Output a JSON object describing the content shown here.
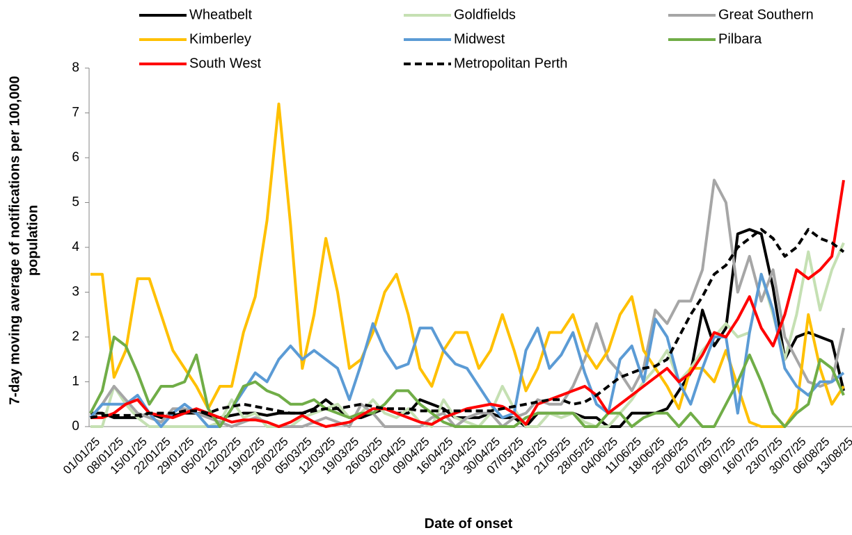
{
  "chart_data": {
    "type": "line",
    "xlabel": "Date of onset",
    "ylabel": [
      "7-day moving average of notifications  per 100,000",
      "population"
    ],
    "categories": [
      "01/01/25",
      null,
      "08/01/25",
      null,
      "15/01/25",
      null,
      "22/01/25",
      null,
      "29/01/25",
      null,
      "05/02/25",
      null,
      "12/02/25",
      null,
      "19/02/25",
      null,
      "26/02/25",
      null,
      "05/03/25",
      null,
      "12/03/25",
      null,
      "19/03/25",
      null,
      "26/03/25",
      null,
      "02/04/25",
      null,
      "09/04/25",
      null,
      "16/04/25",
      null,
      "23/04/25",
      null,
      "30/04/25",
      null,
      "07/05/25",
      null,
      "14/05/25",
      null,
      "21/05/25",
      null,
      "28/05/25",
      null,
      "04/06/25",
      null,
      "11/06/25",
      null,
      "18/06/25",
      null,
      "25/06/25",
      null,
      "02/07/25",
      null,
      "09/07/25",
      null,
      "16/07/25",
      null,
      "23/07/25",
      null,
      "30/07/25",
      null,
      "06/08/25",
      null,
      "13/08/25"
    ],
    "ylim": [
      0,
      8
    ],
    "yticks": [
      0,
      1,
      2,
      3,
      4,
      5,
      6,
      7,
      8
    ],
    "grid": false,
    "legend": "top",
    "series": [
      {
        "name": "Wheatbelt",
        "color": "#000000",
        "style": "solid",
        "values": [
          0.3,
          0.3,
          0.2,
          0.2,
          0.2,
          0.3,
          0.2,
          0.25,
          0.3,
          0.3,
          0.25,
          0.2,
          0.25,
          0.3,
          0.3,
          0.25,
          0.3,
          0.3,
          0.3,
          0.4,
          0.6,
          0.4,
          0.2,
          0.2,
          0.3,
          0.4,
          0.3,
          0.3,
          0.6,
          0.5,
          0.4,
          0.2,
          0.2,
          0.2,
          0.3,
          0.2,
          0.2,
          0.0,
          0.3,
          0.3,
          0.3,
          0.3,
          0.2,
          0.2,
          0.0,
          0.0,
          0.3,
          0.3,
          0.3,
          0.4,
          0.8,
          1.2,
          2.6,
          1.8,
          2.2,
          4.3,
          4.4,
          4.3,
          3.1,
          1.5,
          2.0,
          2.1,
          2.0,
          1.9,
          0.8
        ]
      },
      {
        "name": "Goldfields",
        "color": "#c5e0b3",
        "style": "solid",
        "values": [
          0.0,
          0.0,
          0.9,
          0.5,
          0.2,
          0.0,
          0.0,
          0.0,
          0.0,
          0.0,
          0.0,
          0.1,
          0.6,
          0.2,
          0.3,
          0.0,
          0.0,
          0.0,
          0.2,
          0.3,
          0.4,
          0.5,
          0.2,
          0.3,
          0.6,
          0.3,
          0.2,
          0.4,
          0.1,
          0.0,
          0.6,
          0.2,
          0.1,
          0.0,
          0.3,
          0.9,
          0.4,
          0.0,
          0.0,
          0.3,
          0.2,
          0.3,
          0.1,
          0.0,
          0.0,
          0.3,
          0.6,
          1.0,
          1.3,
          1.7,
          1.0,
          1.3,
          1.7,
          2.0,
          2.3,
          2.0,
          2.1,
          3.4,
          2.5,
          1.5,
          2.5,
          3.9,
          2.6,
          3.5,
          4.1
        ]
      },
      {
        "name": "Great Southern",
        "color": "#a6a6a6",
        "style": "solid",
        "values": [
          0.2,
          0.5,
          0.9,
          0.6,
          0.3,
          0.2,
          0.1,
          0.4,
          0.4,
          0.3,
          0.2,
          0.1,
          0.0,
          0.1,
          0.2,
          0.1,
          0.0,
          0.0,
          0.0,
          0.1,
          0.2,
          0.1,
          0.0,
          0.5,
          0.3,
          0.0,
          0.0,
          0.0,
          0.0,
          0.2,
          0.3,
          0.0,
          0.2,
          0.3,
          0.3,
          0.0,
          0.2,
          0.3,
          0.6,
          0.5,
          0.5,
          0.9,
          1.5,
          2.3,
          1.5,
          1.2,
          0.8,
          1.3,
          2.6,
          2.3,
          2.8,
          2.8,
          3.5,
          5.5,
          5.0,
          3.0,
          3.8,
          2.8,
          3.5,
          2.0,
          1.5,
          1.0,
          0.9,
          1.0,
          2.2
        ]
      },
      {
        "name": "Kimberley",
        "color": "#ffc000",
        "style": "solid",
        "values": [
          3.4,
          3.4,
          1.1,
          1.7,
          3.3,
          3.3,
          2.5,
          1.7,
          1.3,
          0.9,
          0.4,
          0.9,
          0.9,
          2.1,
          2.9,
          4.6,
          7.2,
          4.5,
          1.3,
          2.5,
          4.2,
          3.0,
          1.3,
          1.5,
          2.1,
          3.0,
          3.4,
          2.5,
          1.3,
          0.9,
          1.7,
          2.1,
          2.1,
          1.3,
          1.7,
          2.5,
          1.7,
          0.8,
          1.3,
          2.1,
          2.1,
          2.5,
          1.7,
          1.3,
          1.7,
          2.5,
          2.9,
          1.7,
          1.3,
          0.9,
          0.4,
          1.3,
          1.3,
          1.0,
          1.7,
          0.9,
          0.1,
          0.0,
          0.0,
          0.0,
          0.4,
          2.5,
          1.3,
          0.5,
          0.9
        ]
      },
      {
        "name": "Midwest",
        "color": "#5b9bd5",
        "style": "solid",
        "values": [
          0.2,
          0.5,
          0.5,
          0.5,
          0.7,
          0.3,
          0.0,
          0.3,
          0.5,
          0.3,
          0.0,
          0.0,
          0.4,
          0.8,
          1.2,
          1.0,
          1.5,
          1.8,
          1.5,
          1.7,
          1.5,
          1.3,
          0.6,
          1.4,
          2.3,
          1.7,
          1.3,
          1.4,
          2.2,
          2.2,
          1.7,
          1.4,
          1.3,
          0.9,
          0.5,
          0.2,
          0.3,
          1.7,
          2.2,
          1.3,
          1.6,
          2.1,
          1.2,
          0.5,
          0.3,
          1.5,
          1.8,
          1.0,
          2.4,
          2.0,
          1.0,
          0.5,
          1.3,
          2.0,
          2.0,
          0.3,
          2.1,
          3.4,
          2.6,
          1.3,
          0.9,
          0.7,
          1.0,
          1.0,
          1.2
        ]
      },
      {
        "name": "Pilbara",
        "color": "#70ad47",
        "style": "solid",
        "values": [
          0.3,
          0.8,
          2.0,
          1.8,
          1.2,
          0.5,
          0.9,
          0.9,
          1.0,
          1.6,
          0.4,
          0.0,
          0.4,
          0.9,
          1.0,
          0.8,
          0.7,
          0.5,
          0.5,
          0.6,
          0.4,
          0.3,
          0.2,
          0.3,
          0.3,
          0.5,
          0.8,
          0.8,
          0.5,
          0.3,
          0.1,
          0.0,
          0.0,
          0.0,
          0.0,
          0.0,
          0.0,
          0.2,
          0.3,
          0.3,
          0.3,
          0.3,
          0.0,
          0.0,
          0.3,
          0.3,
          0.0,
          0.2,
          0.3,
          0.3,
          0.0,
          0.3,
          0.0,
          0.0,
          0.5,
          1.0,
          1.6,
          1.0,
          0.3,
          0.0,
          0.3,
          0.5,
          1.5,
          1.3,
          0.7
        ]
      },
      {
        "name": "South West",
        "color": "#ff0000",
        "style": "solid",
        "values": [
          0.2,
          0.2,
          0.3,
          0.5,
          0.6,
          0.3,
          0.25,
          0.2,
          0.3,
          0.4,
          0.3,
          0.2,
          0.1,
          0.15,
          0.15,
          0.1,
          0.0,
          0.1,
          0.25,
          0.1,
          0.0,
          0.05,
          0.1,
          0.25,
          0.4,
          0.4,
          0.3,
          0.2,
          0.1,
          0.05,
          0.2,
          0.3,
          0.4,
          0.45,
          0.5,
          0.45,
          0.3,
          0.05,
          0.5,
          0.6,
          0.7,
          0.8,
          0.9,
          0.7,
          0.3,
          0.5,
          0.7,
          0.9,
          1.1,
          1.3,
          1.0,
          1.2,
          1.6,
          2.1,
          2.0,
          2.4,
          2.9,
          2.2,
          1.8,
          2.5,
          3.5,
          3.3,
          3.5,
          3.8,
          5.5
        ]
      },
      {
        "name": "Metropolitan Perth",
        "color": "#000000",
        "style": "dashed",
        "values": [
          0.2,
          0.25,
          0.25,
          0.25,
          0.25,
          0.3,
          0.3,
          0.3,
          0.35,
          0.35,
          0.3,
          0.4,
          0.45,
          0.5,
          0.45,
          0.4,
          0.35,
          0.3,
          0.3,
          0.35,
          0.4,
          0.4,
          0.45,
          0.5,
          0.45,
          0.4,
          0.4,
          0.4,
          0.35,
          0.35,
          0.35,
          0.35,
          0.35,
          0.35,
          0.35,
          0.4,
          0.45,
          0.5,
          0.55,
          0.6,
          0.6,
          0.5,
          0.55,
          0.7,
          0.9,
          1.1,
          1.2,
          1.3,
          1.35,
          1.5,
          2.0,
          2.5,
          2.9,
          3.4,
          3.6,
          4.0,
          4.2,
          4.4,
          4.2,
          3.8,
          4.0,
          4.4,
          4.2,
          4.1,
          3.9
        ]
      }
    ]
  }
}
